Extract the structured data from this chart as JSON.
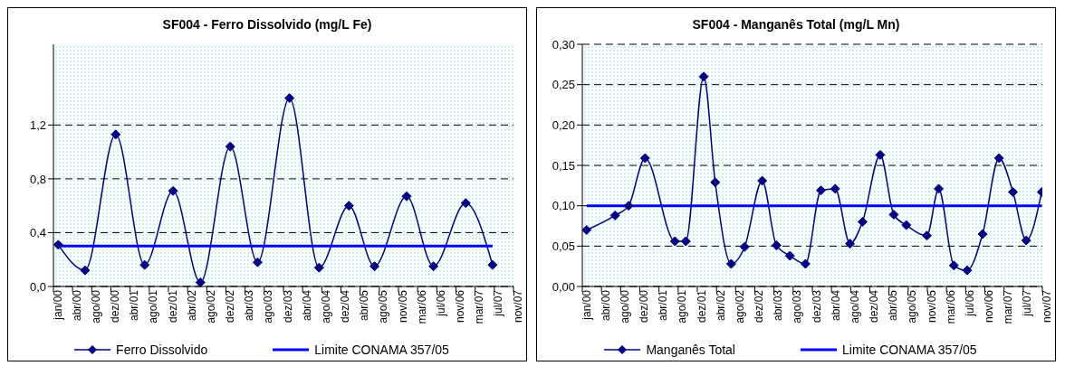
{
  "chart_data": [
    {
      "type": "line",
      "title": "SF004 - Ferro Dissolvido (mg/L Fe)",
      "xlim": [
        "2000-01-01",
        "2007-11-20"
      ],
      "xticks": [
        {
          "value": "2000-01-01",
          "label": "jan/00"
        },
        {
          "value": "2000-04-30",
          "label": "abr/00"
        },
        {
          "value": "2000-08-28",
          "label": "ago/00"
        },
        {
          "value": "2000-12-26",
          "label": "dez/00"
        },
        {
          "value": "2001-04-25",
          "label": "abr/01"
        },
        {
          "value": "2001-08-23",
          "label": "ago/01"
        },
        {
          "value": "2001-12-21",
          "label": "dez/01"
        },
        {
          "value": "2002-04-20",
          "label": "abr/02"
        },
        {
          "value": "2002-08-18",
          "label": "ago/02"
        },
        {
          "value": "2002-12-16",
          "label": "dez/02"
        },
        {
          "value": "2003-04-15",
          "label": "abr/03"
        },
        {
          "value": "2003-08-13",
          "label": "ago/03"
        },
        {
          "value": "2003-12-11",
          "label": "dez/03"
        },
        {
          "value": "2004-04-09",
          "label": "abr/04"
        },
        {
          "value": "2004-08-07",
          "label": "ago/04"
        },
        {
          "value": "2004-12-05",
          "label": "dez/04"
        },
        {
          "value": "2005-04-04",
          "label": "abr/05"
        },
        {
          "value": "2005-08-02",
          "label": "ago/05"
        },
        {
          "value": "2005-11-30",
          "label": "nov/05"
        },
        {
          "value": "2006-03-30",
          "label": "mar/06"
        },
        {
          "value": "2006-07-28",
          "label": "jul/06"
        },
        {
          "value": "2006-11-25",
          "label": "nov/06"
        },
        {
          "value": "2007-03-25",
          "label": "mar/07"
        },
        {
          "value": "2007-07-23",
          "label": "jul/07"
        },
        {
          "value": "2007-11-20",
          "label": "nov/07"
        }
      ],
      "ylim": [
        0,
        1.8
      ],
      "yticks": [
        {
          "value": 0,
          "label": "0,0"
        },
        {
          "value": 0.4,
          "label": "0,4"
        },
        {
          "value": 0.8,
          "label": "0,8"
        },
        {
          "value": 1.2,
          "label": "1,2"
        }
      ],
      "grid": "y",
      "legend": "bottom",
      "series": [
        {
          "name": "Ferro Dissolvido",
          "color": "#000080",
          "marker": "diamond",
          "x": [
            "2000-01-31",
            "2000-07-17",
            "2001-01-25",
            "2001-07-25",
            "2002-01-19",
            "2002-07-09",
            "2003-01-12",
            "2003-07-02",
            "2004-01-18",
            "2004-07-21",
            "2005-01-24",
            "2005-07-03",
            "2006-01-20",
            "2006-07-07",
            "2007-01-25",
            "2007-07-12"
          ],
          "values": [
            0.31,
            0.12,
            1.13,
            0.16,
            0.71,
            0.03,
            1.04,
            0.18,
            1.4,
            0.14,
            0.6,
            0.15,
            0.67,
            0.15,
            0.62,
            0.16
          ]
        },
        {
          "name": "Limite CONAMA 357/05",
          "color": "#0000ff",
          "marker": "none",
          "x": [
            "2000-01-31",
            "2007-07-12"
          ],
          "values": [
            0.3,
            0.3
          ]
        }
      ]
    },
    {
      "type": "line",
      "title": "SF004 - Manganês Total (mg/L Mn)",
      "xlim": [
        "2000-01-01",
        "2007-11-20"
      ],
      "xticks": [
        {
          "value": "2000-01-01",
          "label": "jan/00"
        },
        {
          "value": "2000-04-30",
          "label": "abr/00"
        },
        {
          "value": "2000-08-28",
          "label": "ago/00"
        },
        {
          "value": "2000-12-26",
          "label": "dez/00"
        },
        {
          "value": "2001-04-25",
          "label": "abr/01"
        },
        {
          "value": "2001-08-23",
          "label": "ago/01"
        },
        {
          "value": "2001-12-21",
          "label": "dez/01"
        },
        {
          "value": "2002-04-20",
          "label": "abr/02"
        },
        {
          "value": "2002-08-18",
          "label": "ago/02"
        },
        {
          "value": "2002-12-16",
          "label": "dez/02"
        },
        {
          "value": "2003-04-15",
          "label": "abr/03"
        },
        {
          "value": "2003-08-13",
          "label": "ago/03"
        },
        {
          "value": "2003-12-11",
          "label": "dez/03"
        },
        {
          "value": "2004-04-09",
          "label": "abr/04"
        },
        {
          "value": "2004-08-07",
          "label": "ago/04"
        },
        {
          "value": "2004-12-05",
          "label": "dez/04"
        },
        {
          "value": "2005-04-04",
          "label": "abr/05"
        },
        {
          "value": "2005-08-02",
          "label": "ago/05"
        },
        {
          "value": "2005-11-30",
          "label": "nov/05"
        },
        {
          "value": "2006-03-30",
          "label": "mar/06"
        },
        {
          "value": "2006-07-28",
          "label": "jul/06"
        },
        {
          "value": "2006-11-25",
          "label": "nov/06"
        },
        {
          "value": "2007-03-25",
          "label": "mar/07"
        },
        {
          "value": "2007-07-23",
          "label": "jul/07"
        },
        {
          "value": "2007-11-20",
          "label": "nov/07"
        }
      ],
      "ylim": [
        0,
        0.3
      ],
      "yticks": [
        {
          "value": 0,
          "label": "0,00"
        },
        {
          "value": 0.05,
          "label": "0,05"
        },
        {
          "value": 0.1,
          "label": "0,10"
        },
        {
          "value": 0.15,
          "label": "0,15"
        },
        {
          "value": 0.2,
          "label": "0,20"
        },
        {
          "value": 0.25,
          "label": "0,25"
        },
        {
          "value": 0.3,
          "label": "0,30"
        }
      ],
      "grid": "y",
      "legend": "bottom",
      "series": [
        {
          "name": "Manganês Total",
          "color": "#000080",
          "marker": "diamond",
          "x": [
            "2000-01-28",
            "2000-07-24",
            "2000-10-17",
            "2001-01-28",
            "2001-08-03",
            "2001-10-10",
            "2002-01-30",
            "2002-04-12",
            "2002-07-21",
            "2002-10-13",
            "2003-01-31",
            "2003-04-30",
            "2003-07-24",
            "2003-10-29",
            "2004-02-03",
            "2004-05-02",
            "2004-08-03",
            "2004-10-20",
            "2005-02-08",
            "2005-05-04",
            "2005-07-21",
            "2005-11-27",
            "2006-02-09",
            "2006-05-15",
            "2006-08-06",
            "2006-11-11",
            "2007-02-22",
            "2007-05-20",
            "2007-08-11",
            "2007-11-16"
          ],
          "values": [
            0.07,
            0.088,
            0.1,
            0.159,
            0.056,
            0.056,
            0.26,
            0.129,
            0.028,
            0.049,
            0.131,
            0.051,
            0.038,
            0.028,
            0.119,
            0.121,
            0.053,
            0.08,
            0.163,
            0.089,
            0.076,
            0.063,
            0.121,
            0.026,
            0.02,
            0.065,
            0.159,
            0.117,
            0.057,
            0.117
          ]
        },
        {
          "name": "Limite CONAMA 357/05",
          "color": "#0000ff",
          "marker": "none",
          "x": [
            "2000-01-28",
            "2007-11-16"
          ],
          "values": [
            0.1,
            0.1
          ]
        }
      ]
    }
  ]
}
